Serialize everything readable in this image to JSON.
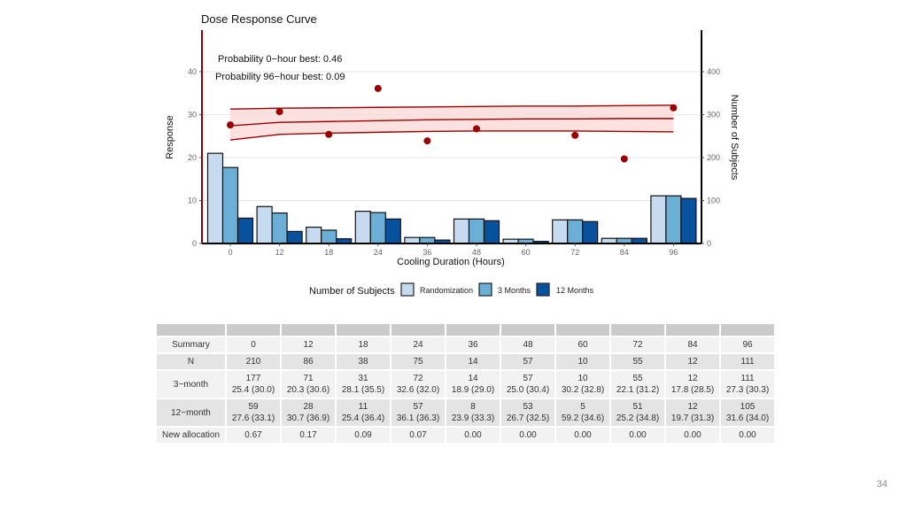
{
  "chart_data": {
    "type": "bar",
    "title": "Dose Response Curve",
    "xlabel": "Cooling Duration (Hours)",
    "ylabel": "Response",
    "y2label": "Number of Subjects",
    "ylim": [
      0,
      48
    ],
    "y2lim": [
      0,
      480
    ],
    "yticks": [
      0,
      10,
      20,
      30,
      40
    ],
    "y2ticks": [
      0,
      100,
      200,
      300,
      400
    ],
    "grid": true,
    "categories": [
      "0",
      "12",
      "18",
      "24",
      "36",
      "48",
      "60",
      "72",
      "84",
      "96"
    ],
    "annotations": [
      "Probability 0−hour best: 0.46",
      "Probability 96−hour best: 0.09"
    ],
    "legend": {
      "title": "Number of Subjects",
      "placement": "bottom"
    },
    "series": [
      {
        "name": "Randomization",
        "color": "#c6dbef",
        "axis": "right",
        "values": [
          210,
          86,
          38,
          75,
          14,
          57,
          10,
          55,
          12,
          111
        ]
      },
      {
        "name": "3 Months",
        "color": "#6baed6",
        "axis": "right",
        "values": [
          177,
          71,
          31,
          72,
          14,
          57,
          10,
          55,
          12,
          111
        ]
      },
      {
        "name": "12 Months",
        "color": "#08519c",
        "axis": "right",
        "values": [
          59,
          28,
          11,
          57,
          8,
          53,
          5,
          51,
          12,
          105
        ]
      }
    ],
    "observed_points": {
      "name": "Observed 12-month mean response",
      "color": "#990000",
      "x": [
        0,
        12,
        18,
        24,
        36,
        48,
        72,
        84,
        96
      ],
      "y": [
        27.6,
        30.7,
        25.4,
        36.1,
        23.9,
        26.7,
        25.2,
        19.7,
        31.6
      ]
    },
    "fitted_curve": {
      "name": "Dose response fit",
      "color": "#990000",
      "band_color": "#fbdada",
      "x": [
        0,
        12,
        18,
        24,
        36,
        48,
        60,
        72,
        84,
        96
      ],
      "mean": [
        27.4,
        28.2,
        28.4,
        28.6,
        28.8,
        28.9,
        29.0,
        29.0,
        29.1,
        29.1
      ],
      "lower": [
        24.1,
        25.4,
        25.7,
        25.9,
        26.1,
        26.2,
        26.2,
        26.2,
        26.1,
        26.0
      ],
      "upper": [
        31.3,
        31.5,
        31.6,
        31.7,
        31.8,
        31.9,
        32.0,
        32.0,
        32.1,
        32.2
      ]
    }
  },
  "table": {
    "header_label": "Summary",
    "doses": [
      "0",
      "12",
      "18",
      "24",
      "36",
      "48",
      "60",
      "72",
      "84",
      "96"
    ],
    "rows": {
      "n": {
        "label": "N",
        "values": [
          "210",
          "86",
          "38",
          "75",
          "14",
          "57",
          "10",
          "55",
          "12",
          "111"
        ]
      },
      "three_month": {
        "label": "3−month",
        "counts": [
          "177",
          "71",
          "31",
          "72",
          "14",
          "57",
          "10",
          "55",
          "12",
          "111"
        ],
        "stats": [
          "25.4 (30.0)",
          "20.3 (30.6)",
          "28.1 (35.5)",
          "32.6 (32.0)",
          "18.9 (29.0)",
          "25.0 (30.4)",
          "30.2 (32.8)",
          "22.1 (31.2)",
          "17.8 (28.5)",
          "27.3 (30.3)"
        ]
      },
      "twelve_month": {
        "label": "12−month",
        "counts": [
          "59",
          "28",
          "11",
          "57",
          "8",
          "53",
          "5",
          "51",
          "12",
          "105"
        ],
        "stats": [
          "27.6 (33.1)",
          "30.7 (36.9)",
          "25.4 (36.4)",
          "36.1 (36.3)",
          "23.9 (33.3)",
          "26.7 (32.5)",
          "59.2 (34.6)",
          "25.2 (34.8)",
          "19.7 (31.3)",
          "31.6 (34.0)"
        ]
      },
      "allocation": {
        "label": "New allocation",
        "values": [
          "0.67",
          "0.17",
          "0.09",
          "0.07",
          "0.00",
          "0.00",
          "0.00",
          "0.00",
          "0.00",
          "0.00"
        ]
      }
    }
  },
  "page_number": "34"
}
